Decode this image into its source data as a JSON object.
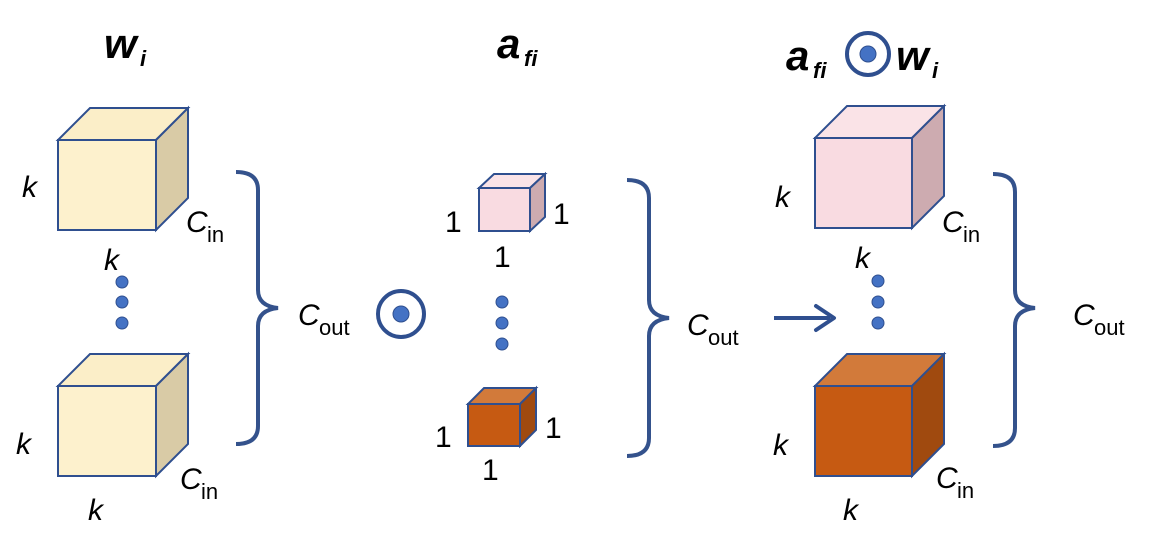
{
  "colors": {
    "stroke": "#2f4f8f",
    "brace": "#34528c",
    "dot": "#4472c4",
    "yellow_front": "#fdf1cd",
    "yellow_top": "#fbeec8",
    "yellow_side": "#d9cba6",
    "pink_front": "#f9dbe1",
    "pink_top": "#fae3e7",
    "pink_side": "#cdabb0",
    "orange_front": "#c65a12",
    "orange_top": "#d27a3a",
    "orange_side": "#a04a0f"
  },
  "titles": {
    "w": "w",
    "w_sub": "i",
    "a": "a",
    "a_sub": "fi",
    "aw_a": "a",
    "aw_a_sub": "fi",
    "aw_w": "w",
    "aw_w_sub": "i"
  },
  "labels": {
    "k": "k",
    "one": "1",
    "c": "C",
    "in": "in",
    "out": "out"
  },
  "icons": {
    "operator": "circled-dot-operator-icon",
    "arrow": "right-arrow-icon",
    "ellipsis": "vertical-ellipsis-icon"
  }
}
